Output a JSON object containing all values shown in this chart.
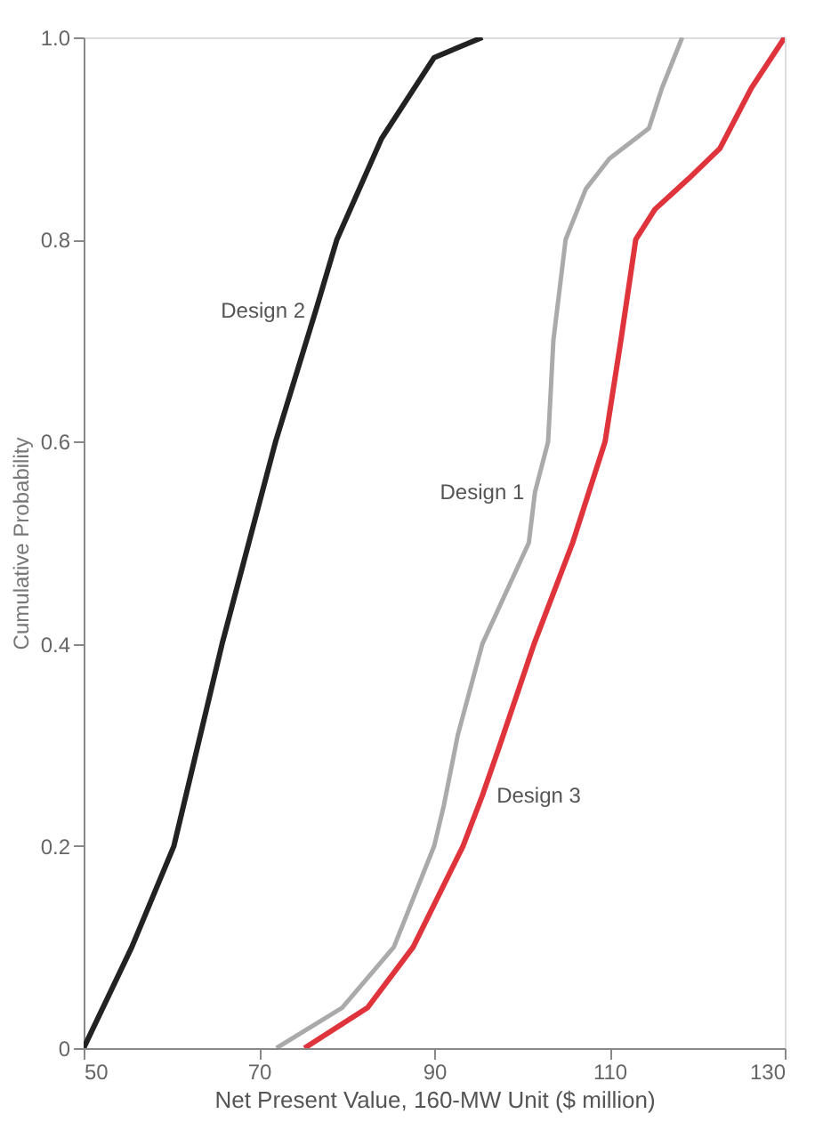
{
  "chart_data": {
    "type": "line",
    "xlabel": "Net Present Value, 160-MW Unit ($ million)",
    "ylabel": "Cumulative Probability",
    "xlim": [
      50,
      130
    ],
    "xticks": [
      50,
      70,
      90,
      110,
      130
    ],
    "ylim": [
      0,
      1
    ],
    "yticks": [
      {
        "value": 0,
        "label": "0"
      },
      0.2,
      0.4,
      0.6,
      0.8,
      {
        "value": 1,
        "label": "1.0"
      }
    ],
    "grid": false,
    "marker": "none",
    "line_style": "solid",
    "series": [
      {
        "color": "#222222",
        "x": [
          50,
          55.5,
          60.3,
          65.8,
          71.9,
          76.5,
          78.9,
          84,
          90,
          95.5
        ],
        "values": [
          0,
          0.1,
          0.2,
          0.4,
          0.6,
          0.73,
          0.8,
          0.9,
          0.98,
          1
        ]
      },
      {
        "color": "#aaaaaa",
        "x": [
          72,
          79.5,
          85.4,
          90,
          91.1,
          92.7,
          95.5,
          100.8,
          101.5,
          103,
          103.6,
          105,
          107.3,
          110,
          114.5,
          116,
          118.3
        ],
        "values": [
          0,
          0.04,
          0.1,
          0.2,
          0.24,
          0.31,
          0.4,
          0.5,
          0.55,
          0.6,
          0.7,
          0.8,
          0.85,
          0.88,
          0.91,
          0.95,
          1
        ]
      },
      {
        "color": "#e0343c",
        "x": [
          75.2,
          82.4,
          87.6,
          93.3,
          95.5,
          97.5,
          101.4,
          105.8,
          109.5,
          111.3,
          113,
          115.2,
          119,
          122.6,
          126.2,
          130
        ],
        "values": [
          0,
          0.04,
          0.1,
          0.2,
          0.25,
          0.3,
          0.4,
          0.5,
          0.6,
          0.7,
          0.8,
          0.83,
          0.86,
          0.89,
          0.95,
          1
        ]
      }
    ],
    "annotations": [
      {
        "text": "Design 2",
        "x": 76.5,
        "y": 0.73
      },
      {
        "text": "Design 1",
        "x": 101.5,
        "y": 0.55
      },
      {
        "text": "Design 3",
        "x": 95.5,
        "y": 0.25
      }
    ]
  }
}
